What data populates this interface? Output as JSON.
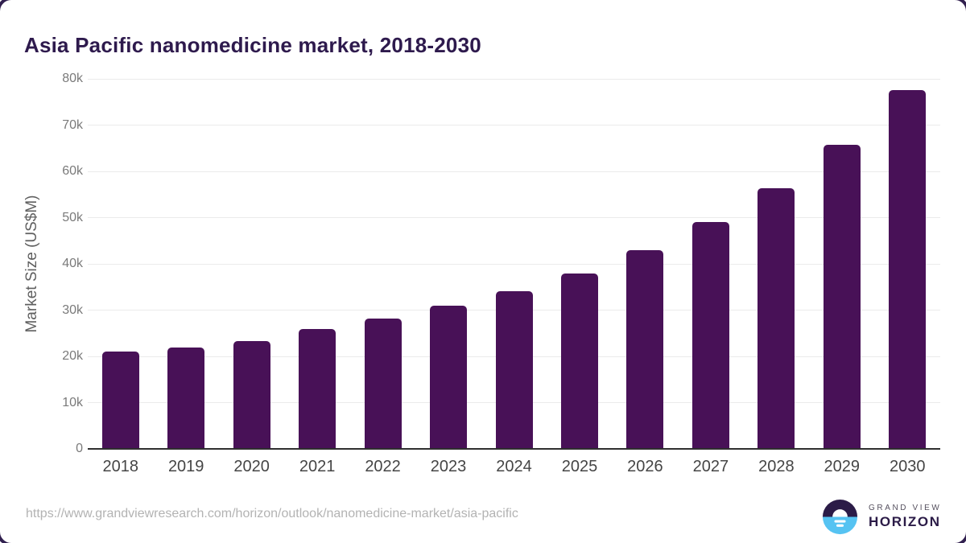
{
  "page": {
    "title": "Asia Pacific nanomedicine market, 2018-2030"
  },
  "chart_data": {
    "type": "bar",
    "title": "Asia Pacific nanomedicine market, 2018-2030",
    "categories": [
      "2018",
      "2019",
      "2020",
      "2021",
      "2022",
      "2023",
      "2024",
      "2025",
      "2026",
      "2027",
      "2028",
      "2029",
      "2030"
    ],
    "values": [
      21000,
      22000,
      23300,
      26000,
      28200,
      31000,
      34100,
      38000,
      43000,
      49000,
      56300,
      65700,
      77600
    ],
    "unit": "US$M",
    "xlabel": "",
    "ylabel": "Market Size (US$M)",
    "ylim": [
      0,
      80000
    ],
    "ytick_step": 10000,
    "ytick_labels": [
      "0",
      "10k",
      "20k",
      "30k",
      "40k",
      "50k",
      "60k",
      "70k",
      "80k"
    ],
    "grid": "horizontal",
    "legend": "none",
    "bar_color": "#481157"
  },
  "footer": {
    "source_url": "https://www.grandviewresearch.com/horizon/outlook/nanomedicine-market/asia-pacific",
    "logo": {
      "line1": "GRAND VIEW",
      "line2": "HORIZON"
    }
  },
  "colors": {
    "title_text": "#2e1a4d",
    "bar": "#481157",
    "axis_line": "#2f2f2f",
    "gridline": "#ebebeb",
    "y_tick_text": "#7a7a7a",
    "x_tick_text": "#454545",
    "y_axis_title_text": "#5f5f5f",
    "source_url_text": "#b3b3b3",
    "logo_dark": "#2b1b47",
    "logo_blue": "#56c3f2",
    "logo_gray_text": "#55505e"
  }
}
